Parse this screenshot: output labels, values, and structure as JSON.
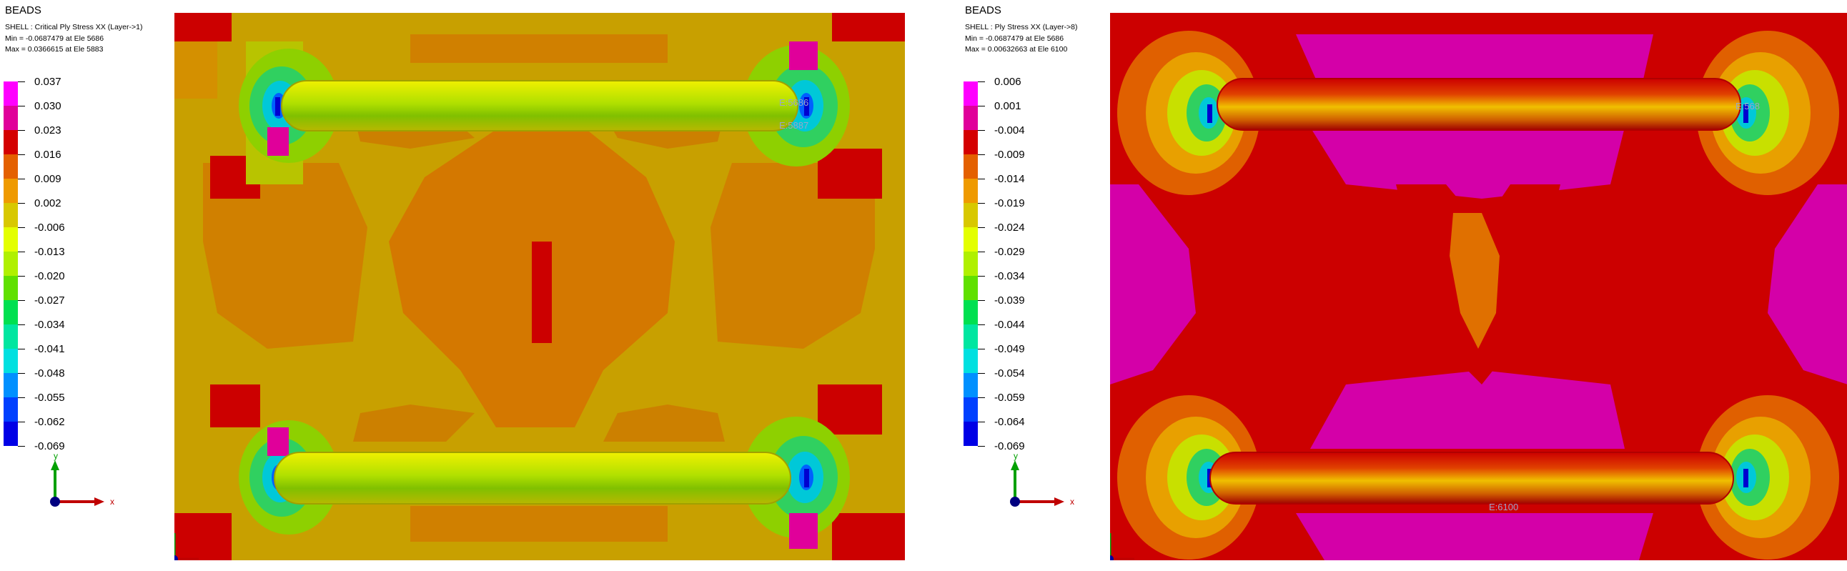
{
  "panels": [
    {
      "app_name": "BEADS",
      "info_line1": "SHELL : Critical Ply Stress XX (Layer->1)",
      "info_line2": "Min = -0.0687479 at Ele 5686",
      "info_line3": "Max = 0.0366615 at Ele 5883",
      "legend_values": [
        "0.037",
        "0.030",
        "0.023",
        "0.016",
        "0.009",
        "0.002",
        "-0.006",
        "-0.013",
        "-0.020",
        "-0.027",
        "-0.034",
        "-0.041",
        "-0.048",
        "-0.055",
        "-0.062",
        "-0.069"
      ],
      "legend_colors": [
        "#ff00ff",
        "#e0009a",
        "#d40000",
        "#e46000",
        "#ef9a00",
        "#d8c800",
        "#e4ff00",
        "#b0f000",
        "#60e000",
        "#00e050",
        "#00e6a0",
        "#00e0e0",
        "#0090ff",
        "#0040ff",
        "#0000e6"
      ],
      "axis_x": "x",
      "axis_y": "y",
      "element_labels": [
        "E:5686",
        "E:5887"
      ]
    },
    {
      "app_name": "BEADS",
      "info_line1": "SHELL : Ply Stress XX (Layer->8)",
      "info_line2": "Min = -0.0687479 at Ele 5686",
      "info_line3": "Max = 0.00632663 at Ele 6100",
      "legend_values": [
        "0.006",
        "0.001",
        "-0.004",
        "-0.009",
        "-0.014",
        "-0.019",
        "-0.024",
        "-0.029",
        "-0.034",
        "-0.039",
        "-0.044",
        "-0.049",
        "-0.054",
        "-0.059",
        "-0.064",
        "-0.069"
      ],
      "legend_colors": [
        "#ff00ff",
        "#e0009a",
        "#d40000",
        "#e46000",
        "#ef9a00",
        "#d8c800",
        "#e4ff00",
        "#b0f000",
        "#60e000",
        "#00e050",
        "#00e6a0",
        "#00e0e0",
        "#0090ff",
        "#0040ff",
        "#0000e6"
      ],
      "axis_x": "x",
      "axis_y": "y",
      "element_labels": [
        "E:568",
        "E:6100"
      ]
    }
  ]
}
